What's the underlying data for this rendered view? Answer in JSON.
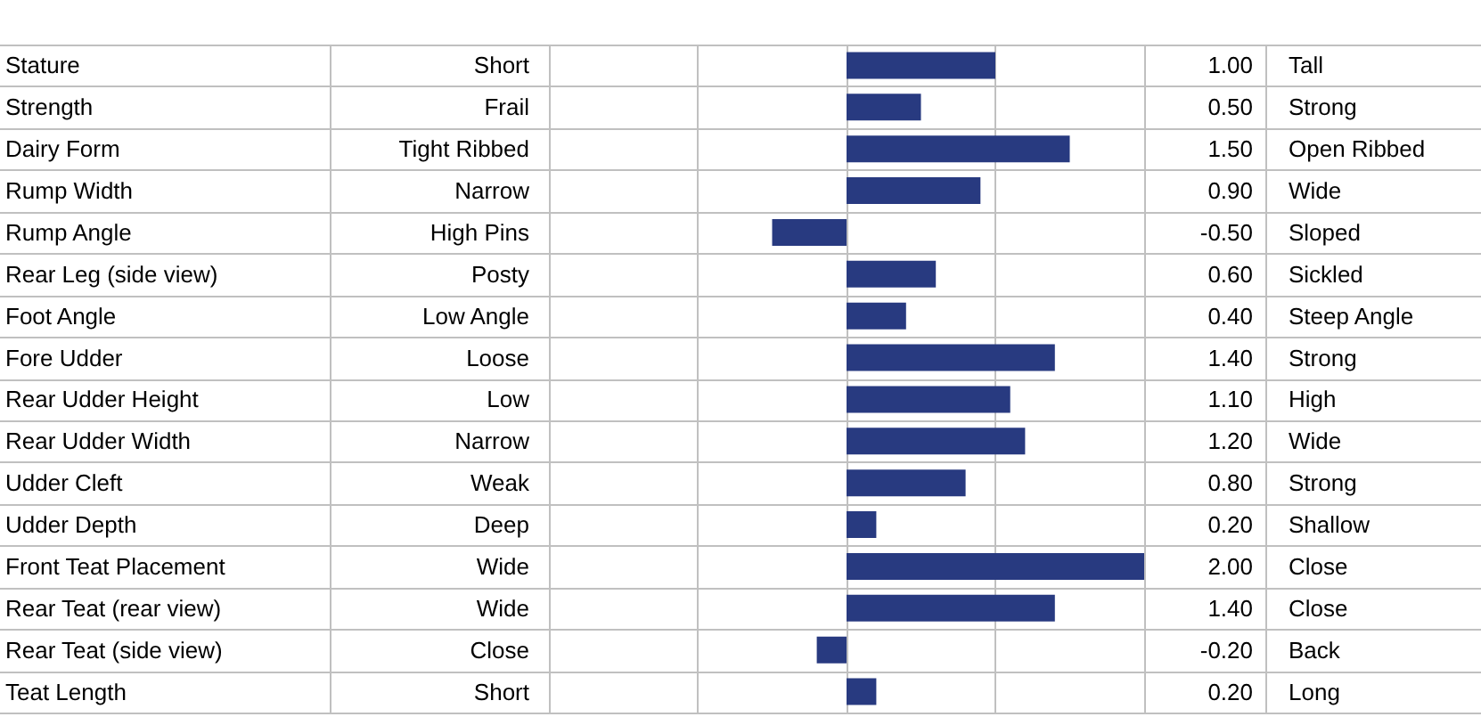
{
  "chart_data": {
    "type": "bar",
    "orientation": "horizontal",
    "categories": [
      "Stature",
      "Strength",
      "Dairy Form",
      "Rump Width",
      "Rump Angle",
      "Rear Leg (side view)",
      "Foot Angle",
      "Fore Udder",
      "Rear Udder Height",
      "Rear Udder Width",
      "Udder Cleft",
      "Udder Depth",
      "Front Teat Placement",
      "Rear Teat (rear view)",
      "Rear Teat (side view)",
      "Teat Length"
    ],
    "values": [
      1.0,
      0.5,
      1.5,
      0.9,
      -0.5,
      0.6,
      0.4,
      1.4,
      1.1,
      1.2,
      0.8,
      0.2,
      2.0,
      1.4,
      -0.2,
      0.2
    ],
    "value_labels": [
      "1.00",
      "0.50",
      "1.50",
      "0.90",
      "-0.50",
      "0.60",
      "0.40",
      "1.40",
      "1.10",
      "1.20",
      "0.80",
      "0.20",
      "2.00",
      "1.40",
      "-0.20",
      "0.20"
    ],
    "color": "#283a80",
    "xlim": [
      -2,
      2
    ],
    "xticks": [
      {
        "value": -2,
        "label": null
      },
      {
        "value": -1,
        "label": null
      },
      {
        "value": 0,
        "label": null
      },
      {
        "value": 1,
        "label": null
      },
      {
        "value": 2,
        "label": null
      }
    ],
    "tick_labels": false,
    "grid": true,
    "annotations": [
      "Short",
      "Tall",
      "Frail",
      "Strong",
      "Tight Ribbed",
      "Open Ribbed",
      "Narrow",
      "Wide",
      "High Pins",
      "Sloped",
      "Posty",
      "Sickled",
      "Low Angle",
      "Steep Angle",
      "Loose",
      "Strong",
      "Low",
      "High",
      "Narrow",
      "Wide",
      "Weak",
      "Strong",
      "Deep",
      "Shallow",
      "Wide",
      "Close",
      "Wide",
      "Close",
      "Close",
      "Back",
      "Short",
      "Long"
    ]
  }
}
